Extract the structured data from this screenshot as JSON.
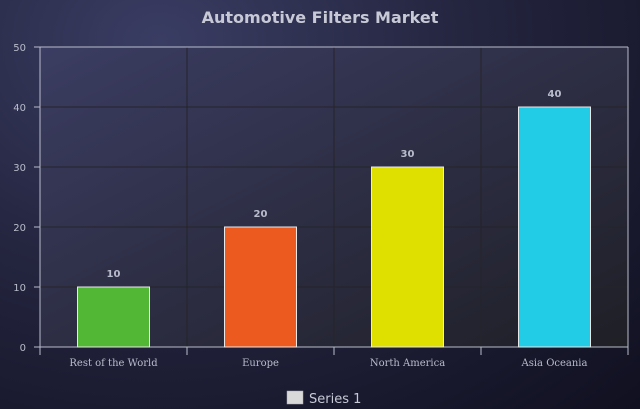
{
  "chart_data": {
    "type": "bar",
    "title": "Automotive Filters Market",
    "xlabel": "",
    "ylabel": "",
    "categories": [
      "Rest of the World",
      "Europe",
      "North America",
      "Asia Oceania"
    ],
    "series": [
      {
        "name": "Series 1",
        "values": [
          10,
          20,
          30,
          40
        ]
      }
    ],
    "bar_colors": [
      "#52b734",
      "#ec5a1f",
      "#dfe000",
      "#22cce6"
    ],
    "legend_swatch_color": "#d9d9d9",
    "ylim": [
      0,
      50
    ],
    "yticks": [
      0,
      10,
      20,
      30,
      40,
      50
    ],
    "grid": true,
    "legend_position": "bottom-center",
    "data_labels": true
  }
}
